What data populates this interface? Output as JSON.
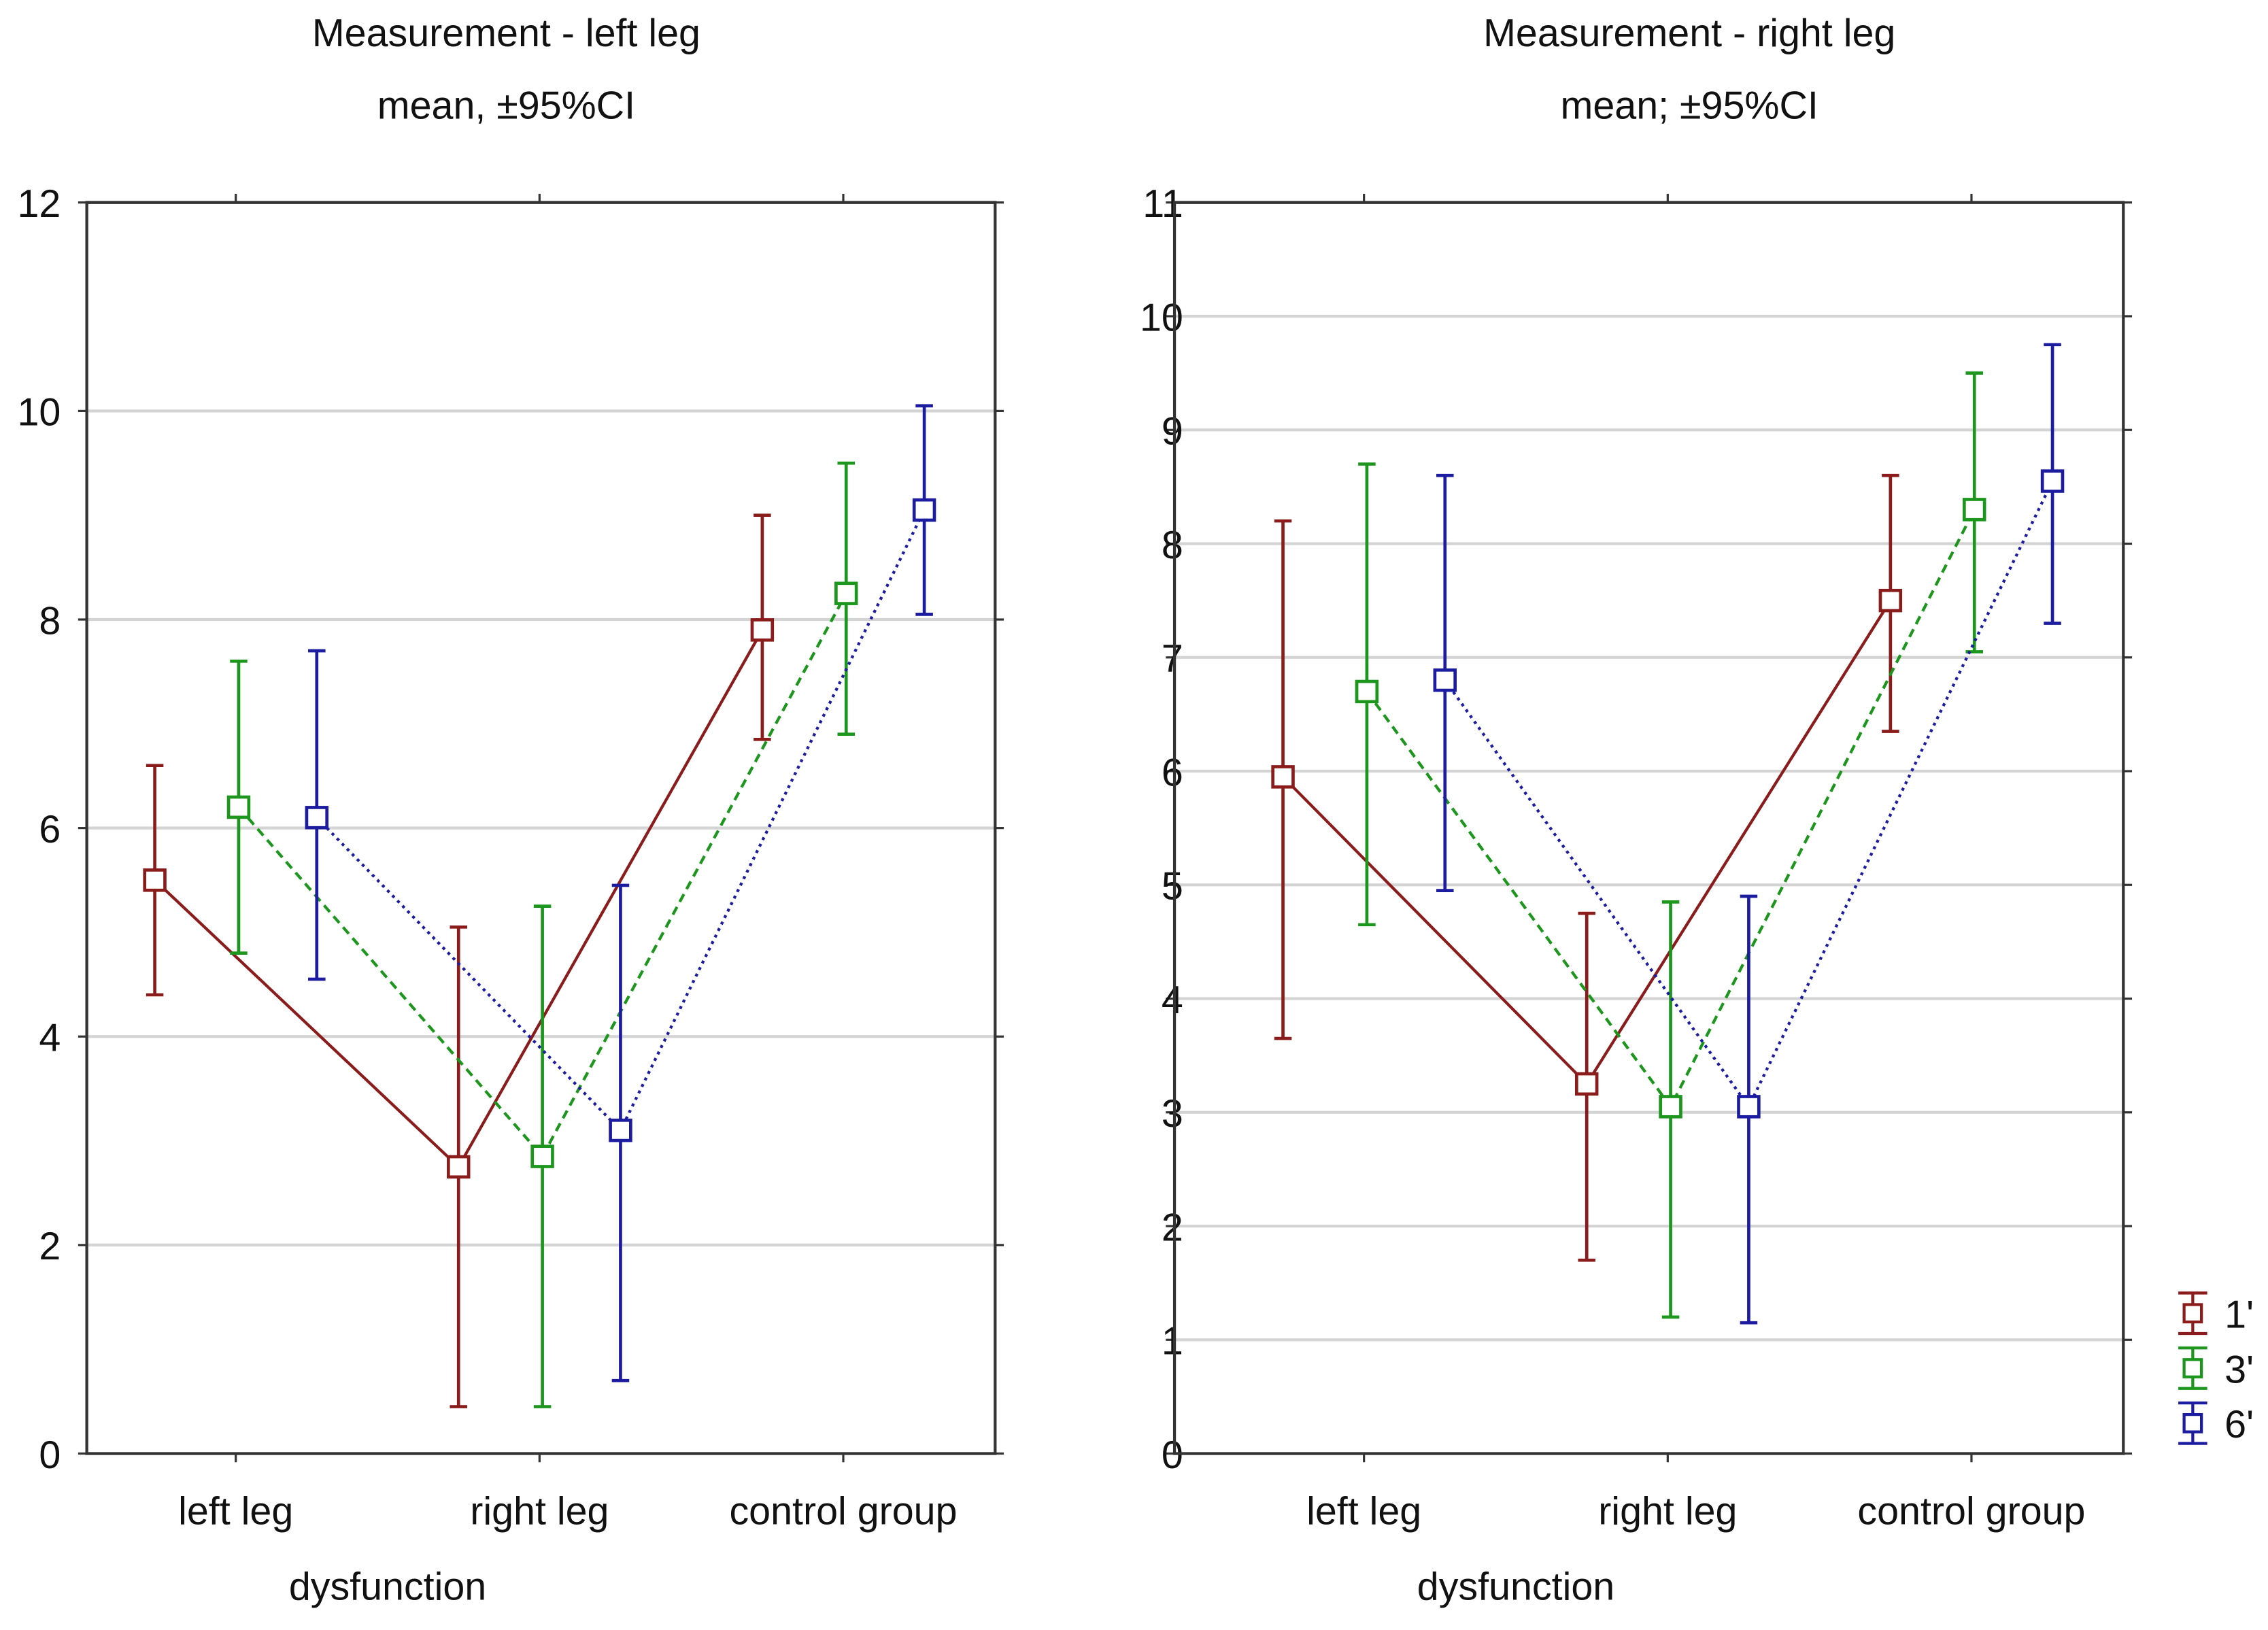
{
  "chart_data": [
    {
      "type": "line",
      "title": "Measurement - left leg",
      "subtitle": "mean, ±95%CI",
      "xlabel": "dysfunction",
      "ylabel": "",
      "categories": [
        "left leg",
        "right leg",
        "control group"
      ],
      "ylim": [
        0,
        12
      ],
      "yticks": [
        "0",
        "2",
        "4",
        "6",
        "8",
        "10",
        "12"
      ],
      "ytick_values": [
        0,
        2,
        4,
        6,
        8,
        10,
        12
      ],
      "grid": true,
      "series": [
        {
          "name": "1'",
          "color": "#8b1c1c",
          "dash": "solid",
          "values": [
            5.5,
            2.75,
            7.9
          ],
          "ci_low": [
            4.4,
            0.45,
            6.85
          ],
          "ci_high": [
            6.6,
            5.05,
            9.0
          ]
        },
        {
          "name": "3'",
          "color": "#1c961c",
          "dash": "dashed",
          "values": [
            6.2,
            2.85,
            8.25
          ],
          "ci_low": [
            4.8,
            0.45,
            6.9
          ],
          "ci_high": [
            7.6,
            5.25,
            9.5
          ]
        },
        {
          "name": "6'",
          "color": "#1c1ca0",
          "dash": "dotted",
          "values": [
            6.1,
            3.1,
            9.05
          ],
          "ci_low": [
            4.55,
            0.7,
            8.05
          ],
          "ci_high": [
            7.7,
            5.45,
            10.05
          ]
        }
      ]
    },
    {
      "type": "line",
      "title": "Measurement - right leg",
      "subtitle": "mean; ±95%CI",
      "xlabel": "dysfunction",
      "ylabel": "",
      "categories": [
        "left leg",
        "right leg",
        "control group"
      ],
      "ylim": [
        0,
        11
      ],
      "yticks": [
        "0",
        "1",
        "2",
        "3",
        "4",
        "5",
        "6",
        "7",
        "8",
        "9",
        "10",
        "11"
      ],
      "ytick_values": [
        0,
        1,
        2,
        3,
        4,
        5,
        6,
        7,
        8,
        9,
        10,
        11
      ],
      "grid": true,
      "legend_position": "bottom-right",
      "series": [
        {
          "name": "1'",
          "color": "#8b1c1c",
          "dash": "solid",
          "values": [
            5.95,
            3.25,
            7.5
          ],
          "ci_low": [
            3.65,
            1.7,
            6.35
          ],
          "ci_high": [
            8.2,
            4.75,
            8.6
          ]
        },
        {
          "name": "3'",
          "color": "#1c961c",
          "dash": "dashed",
          "values": [
            6.7,
            3.05,
            8.3
          ],
          "ci_low": [
            4.65,
            1.2,
            7.05
          ],
          "ci_high": [
            8.7,
            4.85,
            9.5
          ]
        },
        {
          "name": "6'",
          "color": "#1c1ca0",
          "dash": "dotted",
          "values": [
            6.8,
            3.05,
            8.55
          ],
          "ci_low": [
            4.95,
            1.15,
            7.3
          ],
          "ci_high": [
            8.6,
            4.9,
            9.75
          ]
        }
      ]
    }
  ]
}
